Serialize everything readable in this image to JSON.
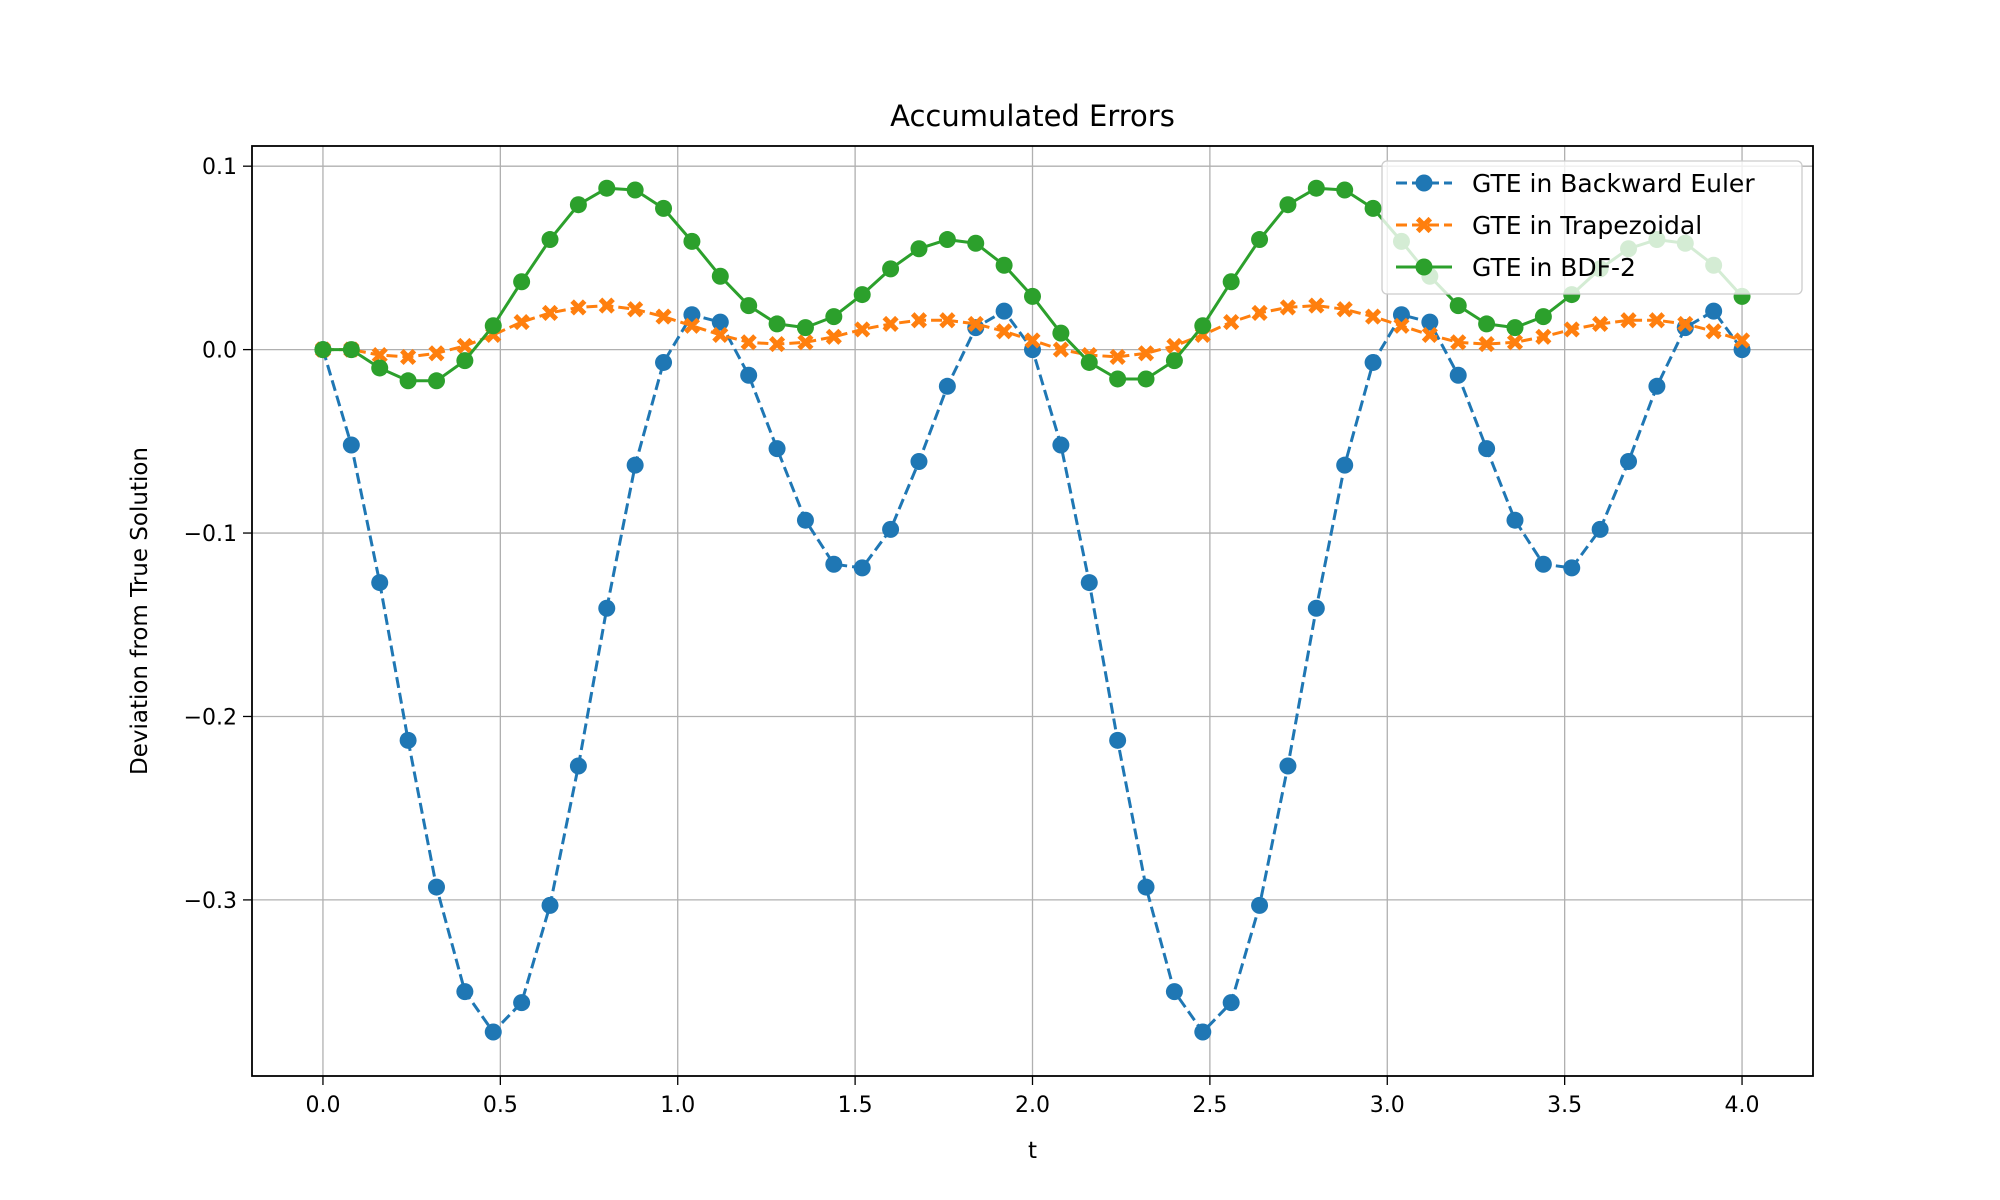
{
  "chart_data": {
    "type": "line",
    "title": "Accumulated Errors",
    "xlabel": "t",
    "ylabel": "Deviation from True Solution",
    "xlim": [
      -0.2,
      4.2
    ],
    "ylim": [
      -0.396,
      0.111
    ],
    "xticks": [
      0.0,
      0.5,
      1.0,
      1.5,
      2.0,
      2.5,
      3.0,
      3.5,
      4.0
    ],
    "xtick_labels": [
      "0.0",
      "0.5",
      "1.0",
      "1.5",
      "2.0",
      "2.5",
      "3.0",
      "3.5",
      "4.0"
    ],
    "yticks": [
      0.1,
      0.0,
      -0.1,
      -0.2,
      -0.3
    ],
    "ytick_labels": [
      "0.1",
      "0.0",
      "−0.1",
      "−0.2",
      "−0.3"
    ],
    "grid": true,
    "legend_position": "top-right",
    "x": [
      0.0,
      0.08,
      0.16,
      0.24,
      0.32,
      0.4,
      0.48,
      0.56,
      0.64,
      0.72,
      0.8,
      0.88,
      0.96,
      1.04,
      1.12,
      1.2,
      1.28,
      1.36,
      1.44,
      1.52,
      1.6,
      1.68,
      1.76,
      1.84,
      1.92,
      2.0,
      2.08,
      2.16,
      2.24,
      2.32,
      2.4,
      2.48,
      2.56,
      2.64,
      2.72,
      2.8,
      2.88,
      2.96,
      3.04,
      3.12,
      3.2,
      3.28,
      3.36,
      3.44,
      3.52,
      3.6,
      3.68,
      3.76,
      3.84,
      3.92,
      4.0
    ],
    "series": [
      {
        "name": "GTE in Backward Euler",
        "color": "#1f77b4",
        "line_style": "dashed",
        "marker": "circle",
        "values": [
          0.0,
          -0.052,
          -0.127,
          -0.213,
          -0.293,
          -0.35,
          -0.372,
          -0.356,
          -0.303,
          -0.227,
          -0.141,
          -0.063,
          -0.007,
          0.019,
          0.015,
          -0.014,
          -0.054,
          -0.093,
          -0.117,
          -0.119,
          -0.098,
          -0.061,
          -0.02,
          0.012,
          0.021,
          0.0,
          -0.052,
          -0.127,
          -0.213,
          -0.293,
          -0.35,
          -0.372,
          -0.356,
          -0.303,
          -0.227,
          -0.141,
          -0.063,
          -0.007,
          0.019,
          0.015,
          -0.014,
          -0.054,
          -0.093,
          -0.117,
          -0.119,
          -0.098,
          -0.061,
          -0.02,
          0.012,
          0.021,
          0.0
        ]
      },
      {
        "name": "GTE in Trapezoidal",
        "color": "#ff7f0e",
        "line_style": "dashed",
        "marker": "x",
        "values": [
          0.0,
          0.0,
          -0.003,
          -0.004,
          -0.002,
          0.002,
          0.008,
          0.015,
          0.02,
          0.023,
          0.024,
          0.022,
          0.018,
          0.013,
          0.008,
          0.004,
          0.003,
          0.004,
          0.007,
          0.011,
          0.014,
          0.016,
          0.016,
          0.014,
          0.01,
          0.005,
          0.0,
          -0.003,
          -0.004,
          -0.002,
          0.002,
          0.008,
          0.015,
          0.02,
          0.023,
          0.024,
          0.022,
          0.018,
          0.013,
          0.008,
          0.004,
          0.003,
          0.004,
          0.007,
          0.011,
          0.014,
          0.016,
          0.016,
          0.014,
          0.01,
          0.005
        ]
      },
      {
        "name": "GTE in BDF-2",
        "color": "#2ca02c",
        "line_style": "solid",
        "marker": "circle",
        "values": [
          0.0,
          0.0,
          -0.01,
          -0.017,
          -0.017,
          -0.006,
          0.013,
          0.037,
          0.06,
          0.079,
          0.088,
          0.087,
          0.077,
          0.059,
          0.04,
          0.024,
          0.014,
          0.012,
          0.018,
          0.03,
          0.044,
          0.055,
          0.06,
          0.058,
          0.046,
          0.029,
          0.009,
          -0.007,
          -0.016,
          -0.016,
          -0.006,
          0.013,
          0.037,
          0.06,
          0.079,
          0.088,
          0.087,
          0.077,
          0.059,
          0.04,
          0.024,
          0.014,
          0.012,
          0.018,
          0.03,
          0.044,
          0.055,
          0.06,
          0.058,
          0.046,
          0.029
        ]
      }
    ]
  }
}
